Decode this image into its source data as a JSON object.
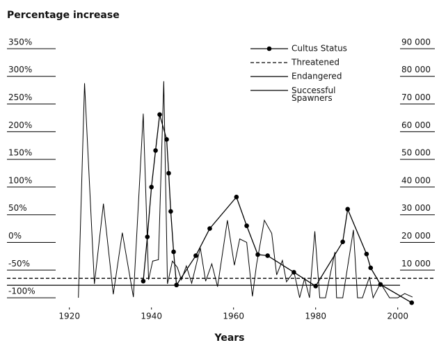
{
  "chart_data": {
    "type": "line",
    "title": "Percentage increase",
    "x_label": "Years",
    "xlim": [
      1917,
      2007
    ],
    "xticks": [
      1920,
      1940,
      1960,
      1980,
      2000
    ],
    "ylim": [
      -115,
      360
    ],
    "yticks": [
      {
        "value": -100,
        "label": "-100%"
      },
      {
        "value": -50,
        "label": "-50%"
      },
      {
        "value": 0,
        "label": "0%"
      },
      {
        "value": 50,
        "label": "50%"
      },
      {
        "value": 100,
        "label": "100%"
      },
      {
        "value": 150,
        "label": "150%"
      },
      {
        "value": 200,
        "label": "200%"
      },
      {
        "value": 250,
        "label": "250%"
      },
      {
        "value": 300,
        "label": "300%"
      },
      {
        "value": 350,
        "label": "350%"
      }
    ],
    "y2lim": [
      -3000,
      92000
    ],
    "y2ticks": [
      {
        "value": 10000,
        "label": "10 000"
      },
      {
        "value": 20000,
        "label": "20 000"
      },
      {
        "value": 30000,
        "label": "30 000"
      },
      {
        "value": 40000,
        "label": "40 000"
      },
      {
        "value": 50000,
        "label": "50 000"
      },
      {
        "value": 60000,
        "label": "60 000"
      },
      {
        "value": 70000,
        "label": "70 000"
      },
      {
        "value": 80000,
        "label": "80 000"
      },
      {
        "value": 90000,
        "label": "90 000"
      }
    ],
    "legend": "upper right",
    "series": [
      {
        "name": "Cultus Status",
        "color": "#000000",
        "style": "marker",
        "x": [
          1938,
          1939,
          1940,
          1941,
          1942,
          1943.7,
          1944.2,
          1944.7,
          1945.4,
          1946.1,
          1950.8,
          1954.2,
          1960.7,
          1963.2,
          1965.9,
          1968.3,
          1974.7,
          1980,
          1986.6,
          1987.8,
          1992.4,
          1993.4,
          1995.8,
          2003.4
        ],
        "values": [
          -70,
          10,
          100,
          166,
          231,
          186,
          125,
          56,
          -17,
          -77,
          -24,
          25,
          82,
          30,
          -22,
          -24,
          -54,
          -79,
          1,
          60,
          -21,
          -46,
          -76,
          -109
        ]
      },
      {
        "name": "Threatened",
        "color": "#000000",
        "style": "dashed",
        "axis": "y2",
        "value": 7000
      },
      {
        "name": "Endangered",
        "color": "#000000",
        "style": "solid",
        "axis": "y2",
        "value": 4500
      },
      {
        "name": "Successful Spawners",
        "color": "#000000",
        "style": "thin",
        "axis": "y2",
        "x": [
          1922.2,
          1923.7,
          1926.1,
          1928.3,
          1930.7,
          1932.9,
          1935.6,
          1938,
          1939.3,
          1940.3,
          1941.7,
          1943,
          1943.9,
          1945.1,
          1946.3,
          1947.3,
          1948.5,
          1949.8,
          1951.9,
          1953.2,
          1954.7,
          1956.1,
          1958.5,
          1960.2,
          1961.5,
          1963.2,
          1964.6,
          1965.6,
          1967.5,
          1969.3,
          1970.5,
          1971.9,
          1972.9,
          1974.7,
          1976.1,
          1977.3,
          1978.5,
          1979.8,
          1981,
          1982.4,
          1983.7,
          1984.7,
          1985.1,
          1986.6,
          1989.2,
          1990.2,
          1991.4,
          1993.1,
          1994,
          1995.8,
          1998,
          2000,
          2001.7,
          2003.6
        ],
        "values": [
          0,
          77500,
          5000,
          34000,
          1250,
          23500,
          250,
          66500,
          6500,
          13250,
          13750,
          78250,
          5000,
          13250,
          11000,
          6500,
          11500,
          5250,
          18000,
          6000,
          12250,
          4000,
          28000,
          11750,
          21250,
          20000,
          500,
          12000,
          28000,
          23250,
          8250,
          13500,
          5750,
          9500,
          0,
          7000,
          0,
          24000,
          0,
          0,
          9500,
          16500,
          0,
          0,
          24500,
          0,
          0,
          7500,
          0,
          5250,
          0,
          0,
          1500,
          250
        ]
      }
    ]
  }
}
